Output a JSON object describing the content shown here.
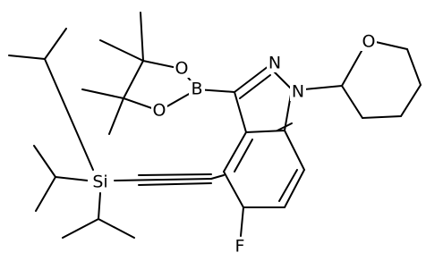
{
  "atoms": [
    {
      "label": "O"
    },
    {
      "label": "O"
    },
    {
      "label": "B"
    },
    {
      "label": "N"
    },
    {
      "label": "N"
    },
    {
      "label": "O"
    },
    {
      "label": "Si"
    },
    {
      "label": "F"
    }
  ]
}
